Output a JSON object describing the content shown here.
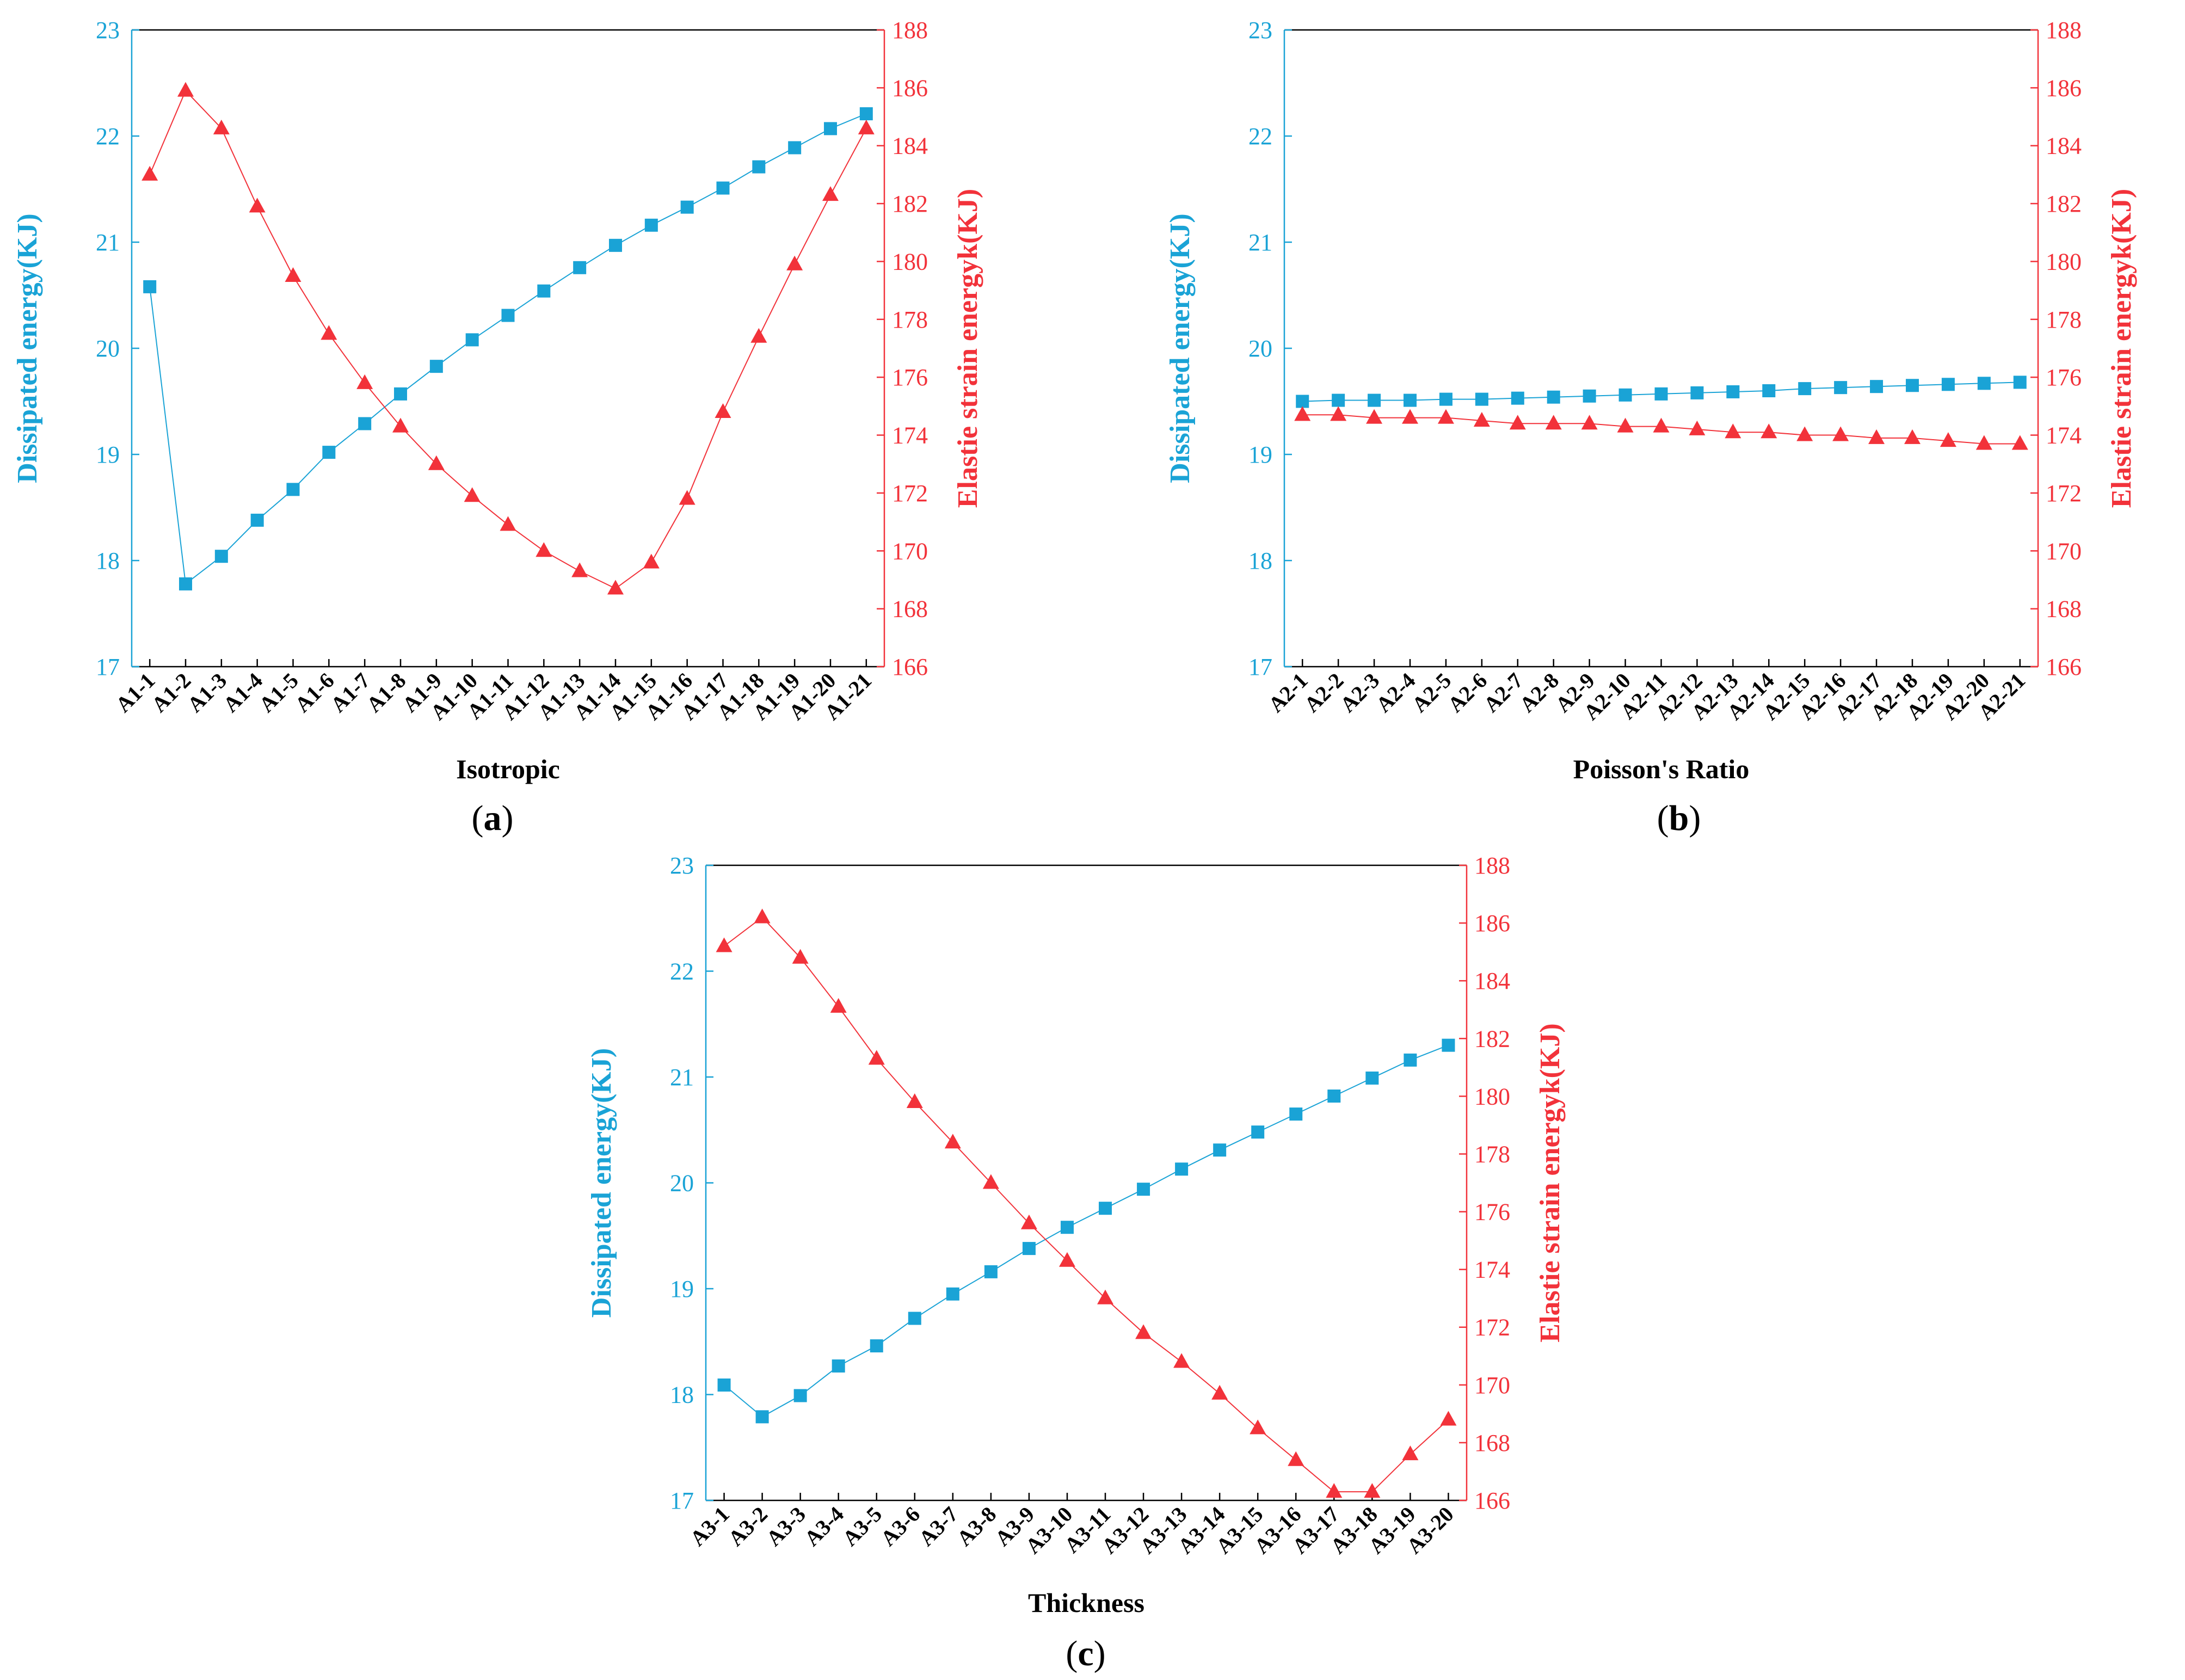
{
  "colors": {
    "dissipated": "#1aa3d6",
    "elastic": "#f2323a",
    "axis": "#000000"
  },
  "chart_data": [
    {
      "type": "line",
      "panel_label": "a",
      "xlabel": "Isotropic",
      "ylabel_left": "Dissipated energy(KJ)",
      "ylabel_right": "Elastie strain energyk(KJ)",
      "ylim_left": [
        17,
        23
      ],
      "yticks_left": [
        "17",
        "18",
        "19",
        "20",
        "21",
        "22",
        "23"
      ],
      "ylim_right": [
        166,
        188
      ],
      "yticks_right": [
        "166",
        "168",
        "170",
        "172",
        "174",
        "176",
        "178",
        "180",
        "182",
        "184",
        "186",
        "188"
      ],
      "categories": [
        "A1-1",
        "A1-2",
        "A1-3",
        "A1-4",
        "A1-5",
        "A1-6",
        "A1-7",
        "A1-8",
        "A1-9",
        "A1-10",
        "A1-11",
        "A1-12",
        "A1-13",
        "A1-14",
        "A1-15",
        "A1-16",
        "A1-17",
        "A1-18",
        "A1-19",
        "A1-20",
        "A1-21"
      ],
      "series": [
        {
          "name": "Dissipated energy",
          "axis": "left",
          "marker": "square",
          "values": [
            20.58,
            17.78,
            18.04,
            18.38,
            18.67,
            19.02,
            19.29,
            19.57,
            19.83,
            20.08,
            20.31,
            20.54,
            20.76,
            20.97,
            21.16,
            21.33,
            21.51,
            21.71,
            21.89,
            22.07,
            22.21
          ]
        },
        {
          "name": "Elastic strain energy",
          "axis": "right",
          "marker": "triangle",
          "values": [
            183.0,
            185.9,
            184.6,
            181.9,
            179.5,
            177.5,
            175.8,
            174.3,
            173.0,
            171.9,
            170.9,
            170.0,
            169.3,
            168.7,
            169.6,
            171.8,
            174.8,
            177.4,
            179.9,
            182.3,
            184.6
          ]
        }
      ]
    },
    {
      "type": "line",
      "panel_label": "b",
      "xlabel": "Poisson's Ratio",
      "ylabel_left": "Dissipated energy(KJ)",
      "ylabel_right": "Elastie strain energyk(KJ)",
      "ylim_left": [
        17,
        23
      ],
      "yticks_left": [
        "17",
        "18",
        "19",
        "20",
        "21",
        "22",
        "23"
      ],
      "ylim_right": [
        166,
        188
      ],
      "yticks_right": [
        "166",
        "168",
        "170",
        "172",
        "174",
        "176",
        "178",
        "180",
        "182",
        "184",
        "186",
        "188"
      ],
      "categories": [
        "A2-1",
        "A2-2",
        "A2-3",
        "A2-4",
        "A2-5",
        "A2-6",
        "A2-7",
        "A2-8",
        "A2-9",
        "A2-10",
        "A2-11",
        "A2-12",
        "A2-13",
        "A2-14",
        "A2-15",
        "A2-16",
        "A2-17",
        "A2-18",
        "A2-19",
        "A2-20",
        "A2-21"
      ],
      "series": [
        {
          "name": "Dissipated energy",
          "axis": "left",
          "marker": "square",
          "values": [
            19.5,
            19.51,
            19.51,
            19.51,
            19.52,
            19.52,
            19.53,
            19.54,
            19.55,
            19.56,
            19.57,
            19.58,
            19.59,
            19.6,
            19.62,
            19.63,
            19.64,
            19.65,
            19.66,
            19.67,
            19.68
          ]
        },
        {
          "name": "Elastic strain energy",
          "axis": "right",
          "marker": "triangle",
          "values": [
            174.7,
            174.7,
            174.6,
            174.6,
            174.6,
            174.5,
            174.4,
            174.4,
            174.4,
            174.3,
            174.3,
            174.2,
            174.1,
            174.1,
            174.0,
            174.0,
            173.9,
            173.9,
            173.8,
            173.7,
            173.7
          ]
        }
      ]
    },
    {
      "type": "line",
      "panel_label": "c",
      "xlabel": "Thickness",
      "ylabel_left": "Dissipated energy(KJ)",
      "ylabel_right": "Elastie strain energyk(KJ)",
      "ylim_left": [
        17,
        23
      ],
      "yticks_left": [
        "17",
        "18",
        "19",
        "20",
        "21",
        "22",
        "23"
      ],
      "ylim_right": [
        166,
        188
      ],
      "yticks_right": [
        "166",
        "168",
        "170",
        "172",
        "174",
        "176",
        "178",
        "180",
        "182",
        "184",
        "186",
        "188"
      ],
      "categories": [
        "A3-1",
        "A3-2",
        "A3-3",
        "A3-4",
        "A3-5",
        "A3-6",
        "A3-7",
        "A3-8",
        "A3-9",
        "A3-10",
        "A3-11",
        "A3-12",
        "A3-13",
        "A3-14",
        "A3-15",
        "A3-16",
        "A3-17",
        "A3-18",
        "A3-19",
        "A3-20"
      ],
      "series": [
        {
          "name": "Dissipated energy",
          "axis": "left",
          "marker": "square",
          "values": [
            18.09,
            17.79,
            17.99,
            18.27,
            18.46,
            18.72,
            18.95,
            19.16,
            19.38,
            19.58,
            19.76,
            19.94,
            20.13,
            20.31,
            20.48,
            20.65,
            20.82,
            20.99,
            21.16,
            21.3
          ]
        },
        {
          "name": "Elastic strain energy",
          "axis": "right",
          "marker": "triangle",
          "values": [
            185.2,
            186.2,
            184.8,
            183.1,
            181.3,
            179.8,
            178.4,
            177.0,
            175.6,
            174.3,
            173.0,
            171.8,
            170.8,
            169.7,
            168.5,
            167.4,
            166.3,
            166.3,
            167.6,
            168.8
          ]
        }
      ]
    }
  ]
}
